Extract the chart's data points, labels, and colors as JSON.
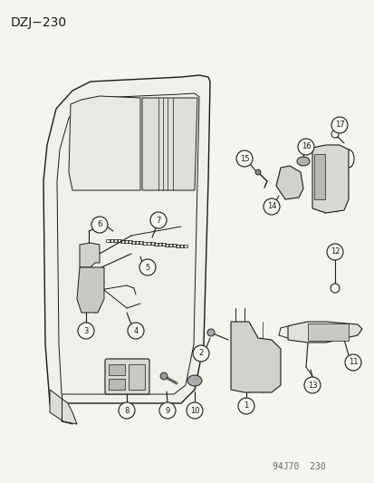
{
  "title": "DZJ−230",
  "bg_color": "#f5f5f0",
  "footer": "94J70  230",
  "line_color": "#1a1a1a",
  "text_color": "#1a1a1a",
  "title_fontsize": 10,
  "label_fontsize": 6.5,
  "circle_r": 0.022
}
